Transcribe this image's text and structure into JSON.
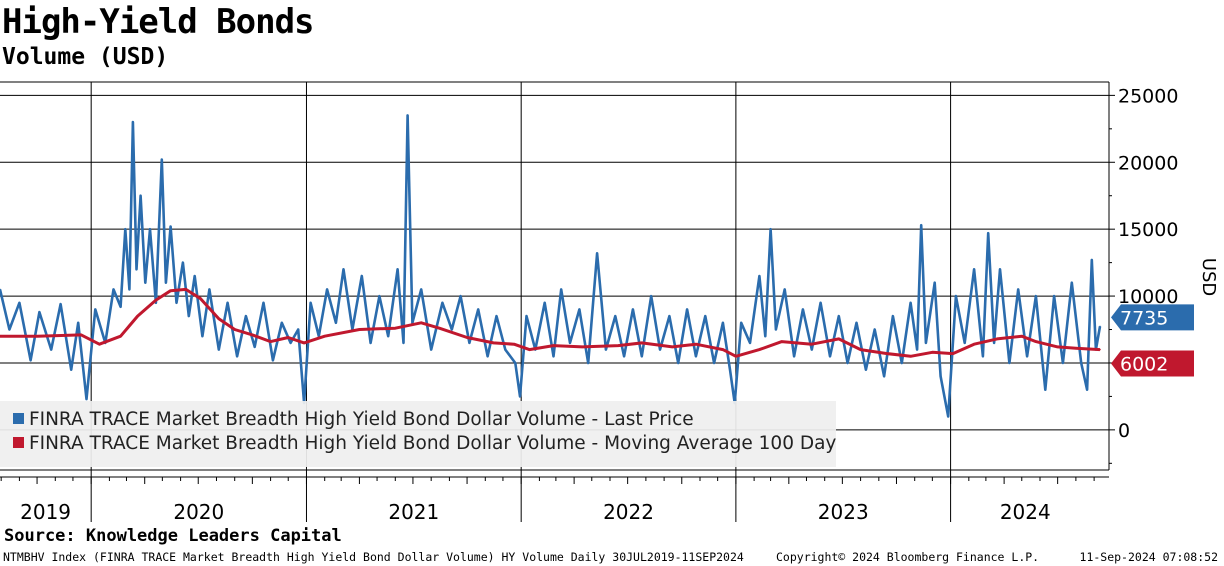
{
  "header": {
    "title": "High-Yield Bonds",
    "subtitle": "Volume (USD)"
  },
  "source": "Source: Knowledge Leaders Capital",
  "footer": {
    "left": "NTMBHV Index (FINRA TRACE Market Breadth High Yield Bond Dollar Volume) HY Volume  Daily 30JUL2019-11SEP2024",
    "middle": "Copyright© 2024 Bloomberg Finance L.P.",
    "right": "11-Sep-2024 07:08:52"
  },
  "colors": {
    "last_price": "#2b6cad",
    "moving_average": "#c0182e",
    "legend_bg": "#efefef"
  },
  "chart_data": {
    "type": "line",
    "x_range": [
      "2019-07-30",
      "2024-09-11"
    ],
    "ylim": [
      -3000,
      26000
    ],
    "ylabel": "USD",
    "y_axis_side": "right",
    "yticks": [
      0,
      5000,
      10000,
      15000,
      20000,
      25000
    ],
    "year_labels": [
      "2019",
      "2020",
      "2021",
      "2022",
      "2023",
      "2024"
    ],
    "grid": true,
    "legend_position": "bottom-left",
    "series": [
      {
        "name": "FINRA TRACE Market Breadth High Yield Bond Dollar Volume - Last Price",
        "last_value_label": "7735",
        "points": [
          [
            "2019-07-30",
            10500
          ],
          [
            "2019-08-15",
            7500
          ],
          [
            "2019-09-01",
            9500
          ],
          [
            "2019-09-20",
            5200
          ],
          [
            "2019-10-05",
            8800
          ],
          [
            "2019-10-25",
            6000
          ],
          [
            "2019-11-10",
            9400
          ],
          [
            "2019-11-28",
            4500
          ],
          [
            "2019-12-10",
            8000
          ],
          [
            "2019-12-24",
            2300
          ],
          [
            "2020-01-08",
            9000
          ],
          [
            "2020-01-25",
            6500
          ],
          [
            "2020-02-08",
            10500
          ],
          [
            "2020-02-20",
            9200
          ],
          [
            "2020-02-28",
            15000
          ],
          [
            "2020-03-06",
            10500
          ],
          [
            "2020-03-12",
            23000
          ],
          [
            "2020-03-18",
            12000
          ],
          [
            "2020-03-25",
            17500
          ],
          [
            "2020-04-02",
            11000
          ],
          [
            "2020-04-10",
            15000
          ],
          [
            "2020-04-20",
            9500
          ],
          [
            "2020-04-30",
            20200
          ],
          [
            "2020-05-07",
            11000
          ],
          [
            "2020-05-15",
            15200
          ],
          [
            "2020-05-25",
            9500
          ],
          [
            "2020-06-05",
            12500
          ],
          [
            "2020-06-15",
            8500
          ],
          [
            "2020-06-25",
            11500
          ],
          [
            "2020-07-08",
            7000
          ],
          [
            "2020-07-20",
            10500
          ],
          [
            "2020-08-05",
            6000
          ],
          [
            "2020-08-20",
            9500
          ],
          [
            "2020-09-05",
            5500
          ],
          [
            "2020-09-20",
            8500
          ],
          [
            "2020-10-05",
            6200
          ],
          [
            "2020-10-20",
            9500
          ],
          [
            "2020-11-05",
            5200
          ],
          [
            "2020-11-20",
            8000
          ],
          [
            "2020-12-05",
            6500
          ],
          [
            "2020-12-18",
            7500
          ],
          [
            "2020-12-28",
            2000
          ],
          [
            "2021-01-08",
            9500
          ],
          [
            "2021-01-22",
            7000
          ],
          [
            "2021-02-05",
            10500
          ],
          [
            "2021-02-20",
            8000
          ],
          [
            "2021-03-05",
            12000
          ],
          [
            "2021-03-20",
            7500
          ],
          [
            "2021-04-05",
            11500
          ],
          [
            "2021-04-20",
            6500
          ],
          [
            "2021-05-05",
            10000
          ],
          [
            "2021-05-20",
            7000
          ],
          [
            "2021-06-05",
            12000
          ],
          [
            "2021-06-15",
            6500
          ],
          [
            "2021-06-22",
            23500
          ],
          [
            "2021-06-30",
            8000
          ],
          [
            "2021-07-15",
            10500
          ],
          [
            "2021-08-01",
            6000
          ],
          [
            "2021-08-20",
            9500
          ],
          [
            "2021-09-05",
            7500
          ],
          [
            "2021-09-20",
            10000
          ],
          [
            "2021-10-05",
            6500
          ],
          [
            "2021-10-20",
            9000
          ],
          [
            "2021-11-05",
            5500
          ],
          [
            "2021-11-20",
            8500
          ],
          [
            "2021-12-05",
            6000
          ],
          [
            "2021-12-22",
            5000
          ],
          [
            "2021-12-30",
            2500
          ],
          [
            "2022-01-10",
            8500
          ],
          [
            "2022-01-25",
            6000
          ],
          [
            "2022-02-10",
            9500
          ],
          [
            "2022-02-25",
            5500
          ],
          [
            "2022-03-10",
            10500
          ],
          [
            "2022-03-25",
            6500
          ],
          [
            "2022-04-10",
            9000
          ],
          [
            "2022-04-25",
            5000
          ],
          [
            "2022-05-10",
            13200
          ],
          [
            "2022-05-25",
            6000
          ],
          [
            "2022-06-10",
            8500
          ],
          [
            "2022-06-25",
            5500
          ],
          [
            "2022-07-10",
            9000
          ],
          [
            "2022-07-25",
            5500
          ],
          [
            "2022-08-10",
            10000
          ],
          [
            "2022-08-25",
            6000
          ],
          [
            "2022-09-10",
            8500
          ],
          [
            "2022-09-25",
            5000
          ],
          [
            "2022-10-10",
            9000
          ],
          [
            "2022-10-25",
            5500
          ],
          [
            "2022-11-10",
            8500
          ],
          [
            "2022-11-25",
            5000
          ],
          [
            "2022-12-10",
            8000
          ],
          [
            "2022-12-22",
            4500
          ],
          [
            "2022-12-30",
            2000
          ],
          [
            "2023-01-10",
            8000
          ],
          [
            "2023-01-25",
            6500
          ],
          [
            "2023-02-10",
            11500
          ],
          [
            "2023-02-20",
            7000
          ],
          [
            "2023-03-01",
            15000
          ],
          [
            "2023-03-10",
            7500
          ],
          [
            "2023-03-25",
            10500
          ],
          [
            "2023-04-10",
            5500
          ],
          [
            "2023-04-25",
            9000
          ],
          [
            "2023-05-10",
            6000
          ],
          [
            "2023-05-25",
            9500
          ],
          [
            "2023-06-10",
            5500
          ],
          [
            "2023-06-25",
            8500
          ],
          [
            "2023-07-10",
            5000
          ],
          [
            "2023-07-25",
            8000
          ],
          [
            "2023-08-10",
            4500
          ],
          [
            "2023-08-25",
            7500
          ],
          [
            "2023-09-10",
            4000
          ],
          [
            "2023-09-25",
            8500
          ],
          [
            "2023-10-10",
            5000
          ],
          [
            "2023-10-25",
            9500
          ],
          [
            "2023-11-05",
            6000
          ],
          [
            "2023-11-12",
            15300
          ],
          [
            "2023-11-20",
            6500
          ],
          [
            "2023-12-05",
            11000
          ],
          [
            "2023-12-15",
            4000
          ],
          [
            "2023-12-28",
            1000
          ],
          [
            "2024-01-10",
            10000
          ],
          [
            "2024-01-25",
            6500
          ],
          [
            "2024-02-10",
            12000
          ],
          [
            "2024-02-25",
            5500
          ],
          [
            "2024-03-05",
            14700
          ],
          [
            "2024-03-15",
            6500
          ],
          [
            "2024-03-25",
            12000
          ],
          [
            "2024-04-10",
            5000
          ],
          [
            "2024-04-25",
            10500
          ],
          [
            "2024-05-10",
            5500
          ],
          [
            "2024-05-25",
            10000
          ],
          [
            "2024-06-10",
            3000
          ],
          [
            "2024-06-25",
            10000
          ],
          [
            "2024-07-10",
            5000
          ],
          [
            "2024-07-25",
            11000
          ],
          [
            "2024-08-10",
            5000
          ],
          [
            "2024-08-20",
            3000
          ],
          [
            "2024-08-28",
            12700
          ],
          [
            "2024-09-04",
            6000
          ],
          [
            "2024-09-11",
            7735
          ]
        ]
      },
      {
        "name": "FINRA TRACE Market Breadth High Yield Bond Dollar Volume - Moving Average 100 Day",
        "last_value_label": "6002",
        "points": [
          [
            "2019-07-30",
            7000
          ],
          [
            "2019-10-01",
            7000
          ],
          [
            "2019-12-15",
            7100
          ],
          [
            "2020-01-15",
            6400
          ],
          [
            "2020-02-20",
            7000
          ],
          [
            "2020-03-20",
            8500
          ],
          [
            "2020-04-20",
            9700
          ],
          [
            "2020-05-15",
            10400
          ],
          [
            "2020-06-10",
            10500
          ],
          [
            "2020-07-05",
            9800
          ],
          [
            "2020-08-05",
            8300
          ],
          [
            "2020-09-01",
            7500
          ],
          [
            "2020-10-01",
            7100
          ],
          [
            "2020-11-01",
            6600
          ],
          [
            "2020-12-01",
            6900
          ],
          [
            "2020-12-28",
            6500
          ],
          [
            "2021-02-01",
            7000
          ],
          [
            "2021-04-01",
            7500
          ],
          [
            "2021-06-01",
            7600
          ],
          [
            "2021-07-15",
            8000
          ],
          [
            "2021-08-15",
            7600
          ],
          [
            "2021-10-01",
            6900
          ],
          [
            "2021-11-15",
            6500
          ],
          [
            "2021-12-20",
            6400
          ],
          [
            "2022-01-15",
            6000
          ],
          [
            "2022-02-25",
            6300
          ],
          [
            "2022-04-15",
            6200
          ],
          [
            "2022-06-15",
            6300
          ],
          [
            "2022-07-25",
            6500
          ],
          [
            "2022-09-15",
            6200
          ],
          [
            "2022-10-25",
            6400
          ],
          [
            "2022-12-10",
            6000
          ],
          [
            "2023-01-01",
            5500
          ],
          [
            "2023-02-10",
            6000
          ],
          [
            "2023-03-20",
            6600
          ],
          [
            "2023-05-10",
            6400
          ],
          [
            "2023-06-25",
            6800
          ],
          [
            "2023-08-01",
            6000
          ],
          [
            "2023-09-15",
            5700
          ],
          [
            "2023-10-25",
            5500
          ],
          [
            "2023-12-01",
            5800
          ],
          [
            "2024-01-05",
            5700
          ],
          [
            "2024-02-10",
            6400
          ],
          [
            "2024-03-20",
            6800
          ],
          [
            "2024-05-01",
            7000
          ],
          [
            "2024-05-25",
            6600
          ],
          [
            "2024-07-01",
            6200
          ],
          [
            "2024-08-01",
            6100
          ],
          [
            "2024-09-11",
            6002
          ]
        ]
      }
    ]
  }
}
